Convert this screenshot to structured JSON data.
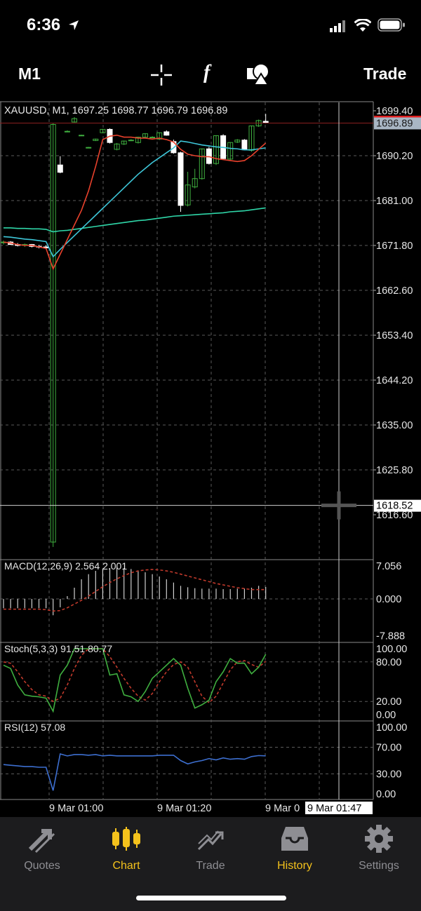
{
  "status_bar": {
    "time": "6:36"
  },
  "toolbar": {
    "timeframe": "M1",
    "trade_label": "Trade",
    "function_label": "f"
  },
  "chart": {
    "header": "XAUUSD, M1, 1697.25 1698.77 1696.79 1696.89",
    "current_price": "1696.89",
    "crosshair_price": "1618.52",
    "crosshair_time": "9 Mar 01:47",
    "price_ticks": [
      "1699.40",
      "1690.20",
      "1681.00",
      "1671.80",
      "1662.60",
      "1653.40",
      "1644.20",
      "1635.00",
      "1625.80",
      "1616.60"
    ],
    "time_ticks": [
      "9 Mar 01:00",
      "9 Mar 01:20",
      "9 Mar 0"
    ],
    "colors": {
      "bull": "#3fae3f",
      "bear": "#ffffff",
      "ma_fast": "#e8412c",
      "ma_mid": "#3ec6d8",
      "ma_slow": "#2fd6a8",
      "macd_signal": "#c0392b",
      "stoch_main": "#3fae3f",
      "stoch_signal": "#c0392b",
      "rsi": "#3d6fd0",
      "price_line": "#e02020"
    }
  },
  "chart_data": {
    "type": "candlestick",
    "symbol": "XAUUSD",
    "timeframe": "M1",
    "ylim": [
      1609,
      1700.5
    ],
    "candles": [
      [
        1672.4,
        1672.8,
        1672.0,
        1672.5
      ],
      [
        1672.5,
        1672.7,
        1671.9,
        1672.0
      ],
      [
        1672.0,
        1672.3,
        1671.6,
        1671.8
      ],
      [
        1671.8,
        1672.2,
        1671.5,
        1672.0
      ],
      [
        1672.0,
        1672.1,
        1671.4,
        1671.6
      ],
      [
        1671.6,
        1671.9,
        1671.2,
        1671.5
      ],
      [
        1671.5,
        1671.8,
        1671.0,
        1671.3
      ],
      [
        1611.0,
        1696.9,
        1610.0,
        1696.6
      ],
      [
        1688.3,
        1690.1,
        1686.6,
        1686.8
      ],
      [
        1695.2,
        1695.4,
        1695.0,
        1695.2
      ],
      [
        1697.1,
        1698.1,
        1697.0,
        1697.8
      ],
      [
        1694.4,
        1694.5,
        1694.3,
        1694.4
      ],
      [
        1691.9,
        1692.0,
        1691.8,
        1691.9
      ],
      [
        1693.3,
        1693.7,
        1693.2,
        1693.6
      ],
      [
        1694.9,
        1695.7,
        1694.8,
        1695.6
      ],
      [
        1695.6,
        1695.8,
        1692.7,
        1692.9
      ],
      [
        1691.5,
        1692.8,
        1691.3,
        1692.6
      ],
      [
        1692.6,
        1693.3,
        1692.4,
        1693.2
      ],
      [
        1693.4,
        1693.6,
        1693.2,
        1693.4
      ],
      [
        1692.9,
        1694.1,
        1692.7,
        1694.0
      ],
      [
        1694.0,
        1694.8,
        1693.8,
        1694.7
      ],
      [
        1694.0,
        1694.2,
        1693.9,
        1694.0
      ],
      [
        1693.6,
        1695.0,
        1693.4,
        1694.9
      ],
      [
        1695.1,
        1695.4,
        1694.3,
        1694.4
      ],
      [
        1693.1,
        1693.5,
        1690.6,
        1690.8
      ],
      [
        1690.8,
        1691.0,
        1678.7,
        1680.0
      ],
      [
        1680.1,
        1686.9,
        1679.8,
        1684.2
      ],
      [
        1683.8,
        1687.5,
        1683.5,
        1685.5
      ],
      [
        1685.5,
        1691.7,
        1685.3,
        1691.6
      ],
      [
        1691.6,
        1692.0,
        1688.4,
        1688.6
      ],
      [
        1688.6,
        1694.4,
        1688.3,
        1694.3
      ],
      [
        1694.3,
        1694.6,
        1689.5,
        1689.6
      ],
      [
        1689.5,
        1693.0,
        1689.2,
        1692.9
      ],
      [
        1693.0,
        1693.6,
        1692.8,
        1693.4
      ],
      [
        1693.4,
        1693.6,
        1691.3,
        1691.4
      ],
      [
        1691.3,
        1696.4,
        1691.0,
        1696.3
      ],
      [
        1696.3,
        1697.6,
        1696.1,
        1697.4
      ],
      [
        1697.25,
        1698.77,
        1696.79,
        1696.89
      ]
    ],
    "ma_fast": [
      1672.5,
      1672.3,
      1672.0,
      1671.8,
      1671.8,
      1671.5,
      1671.2,
      1667.0,
      1670.0,
      1673.0,
      1676.0,
      1679.0,
      1683.0,
      1688.0,
      1693.5,
      1694.2,
      1694.4,
      1694.0,
      1694.0,
      1693.8,
      1693.8,
      1693.6,
      1693.8,
      1693.5,
      1693.0,
      1691.5,
      1690.5,
      1690.2,
      1690.0,
      1690.0,
      1689.6,
      1689.4,
      1689.2,
      1689.0,
      1689.2,
      1690.2,
      1691.5,
      1692.8
    ],
    "ma_mid": [
      1673.6,
      1673.5,
      1673.3,
      1673.1,
      1673.0,
      1672.8,
      1672.6,
      1669.5,
      1671.0,
      1672.4,
      1673.8,
      1675.2,
      1676.6,
      1678.0,
      1679.4,
      1680.8,
      1682.2,
      1683.6,
      1685.0,
      1686.4,
      1687.6,
      1688.8,
      1689.8,
      1690.8,
      1691.8,
      1693.2,
      1693.0,
      1692.7,
      1692.4,
      1692.2,
      1692.0,
      1691.9,
      1691.7,
      1691.6,
      1691.4,
      1691.4,
      1691.6,
      1691.8
    ],
    "ma_slow": [
      1675.4,
      1675.4,
      1675.3,
      1675.3,
      1675.2,
      1675.2,
      1675.1,
      1674.6,
      1674.8,
      1674.9,
      1675.1,
      1675.3,
      1675.5,
      1675.7,
      1675.9,
      1676.1,
      1676.3,
      1676.5,
      1676.7,
      1676.9,
      1677.0,
      1677.2,
      1677.4,
      1677.6,
      1677.8,
      1677.9,
      1678.0,
      1678.1,
      1678.2,
      1678.3,
      1678.4,
      1678.5,
      1678.7,
      1678.8,
      1678.9,
      1679.1,
      1679.3,
      1679.5
    ],
    "macd": {
      "label": "MACD(12,26,9) 2.564 2.001",
      "ticks": [
        "7.056",
        "0.000",
        "-7.888"
      ],
      "ylim": [
        -7.888,
        7.056
      ],
      "histogram": [
        -2.0,
        -2.0,
        -2.0,
        -2.0,
        -2.0,
        -2.0,
        -2.0,
        -3.5,
        -1.8,
        0.6,
        2.4,
        4.2,
        5.3,
        6.0,
        6.5,
        6.6,
        6.7,
        6.6,
        6.4,
        6.1,
        5.7,
        5.3,
        4.8,
        4.2,
        3.5,
        2.8,
        2.5,
        2.3,
        2.2,
        2.2,
        2.2,
        2.1,
        2.1,
        2.2,
        2.2,
        2.4,
        2.8,
        2.564
      ],
      "signal": [
        -2.2,
        -2.2,
        -2.2,
        -2.2,
        -2.2,
        -2.2,
        -2.3,
        -2.6,
        -2.5,
        -1.9,
        -1.1,
        -0.3,
        0.6,
        1.6,
        2.6,
        3.5,
        4.3,
        5.0,
        5.6,
        6.0,
        6.2,
        6.3,
        6.2,
        6.0,
        5.7,
        5.3,
        4.9,
        4.5,
        4.1,
        3.7,
        3.3,
        3.0,
        2.7,
        2.4,
        2.2,
        2.0,
        2.0,
        2.001
      ]
    },
    "stoch": {
      "label": "Stoch(5,3,3) 91.51 80.77",
      "ticks": [
        "100.00",
        "80.00",
        "20.00",
        "0.00"
      ],
      "ylim": [
        0,
        100
      ],
      "main": [
        75,
        70,
        45,
        30,
        28,
        27,
        25,
        5,
        60,
        75,
        100,
        100,
        100,
        100,
        100,
        60,
        62,
        30,
        27,
        20,
        35,
        55,
        65,
        75,
        85,
        75,
        40,
        10,
        15,
        22,
        50,
        65,
        85,
        78,
        78,
        62,
        72,
        91.51
      ],
      "signal": [
        80,
        78,
        65,
        50,
        38,
        30,
        28,
        20,
        25,
        45,
        70,
        90,
        100,
        100,
        100,
        88,
        72,
        55,
        40,
        28,
        22,
        32,
        50,
        65,
        76,
        80,
        72,
        50,
        28,
        18,
        28,
        48,
        68,
        80,
        82,
        76,
        72,
        80.77
      ]
    },
    "rsi": {
      "label": "RSI(12) 57.08",
      "ticks": [
        "100.00",
        "70.00",
        "30.00",
        "0.00"
      ],
      "ylim": [
        0,
        100
      ],
      "values": [
        44,
        43,
        42,
        41,
        41,
        40,
        40,
        5,
        60,
        57,
        59,
        59,
        58,
        59,
        57,
        58,
        57,
        57,
        57,
        57,
        57,
        57,
        58,
        58,
        58,
        50,
        45,
        48,
        50,
        53,
        51,
        54,
        52,
        53,
        52,
        56,
        57.5,
        57.08
      ]
    }
  },
  "tabs": [
    {
      "label": "Quotes",
      "icon": "quotes-arrows-icon",
      "active": false
    },
    {
      "label": "Chart",
      "icon": "candlestick-icon",
      "active": true
    },
    {
      "label": "Trade",
      "icon": "trade-chart-icon",
      "active": false
    },
    {
      "label": "History",
      "icon": "inbox-tray-icon",
      "active": true
    },
    {
      "label": "Settings",
      "icon": "gear-icon",
      "active": false
    }
  ]
}
